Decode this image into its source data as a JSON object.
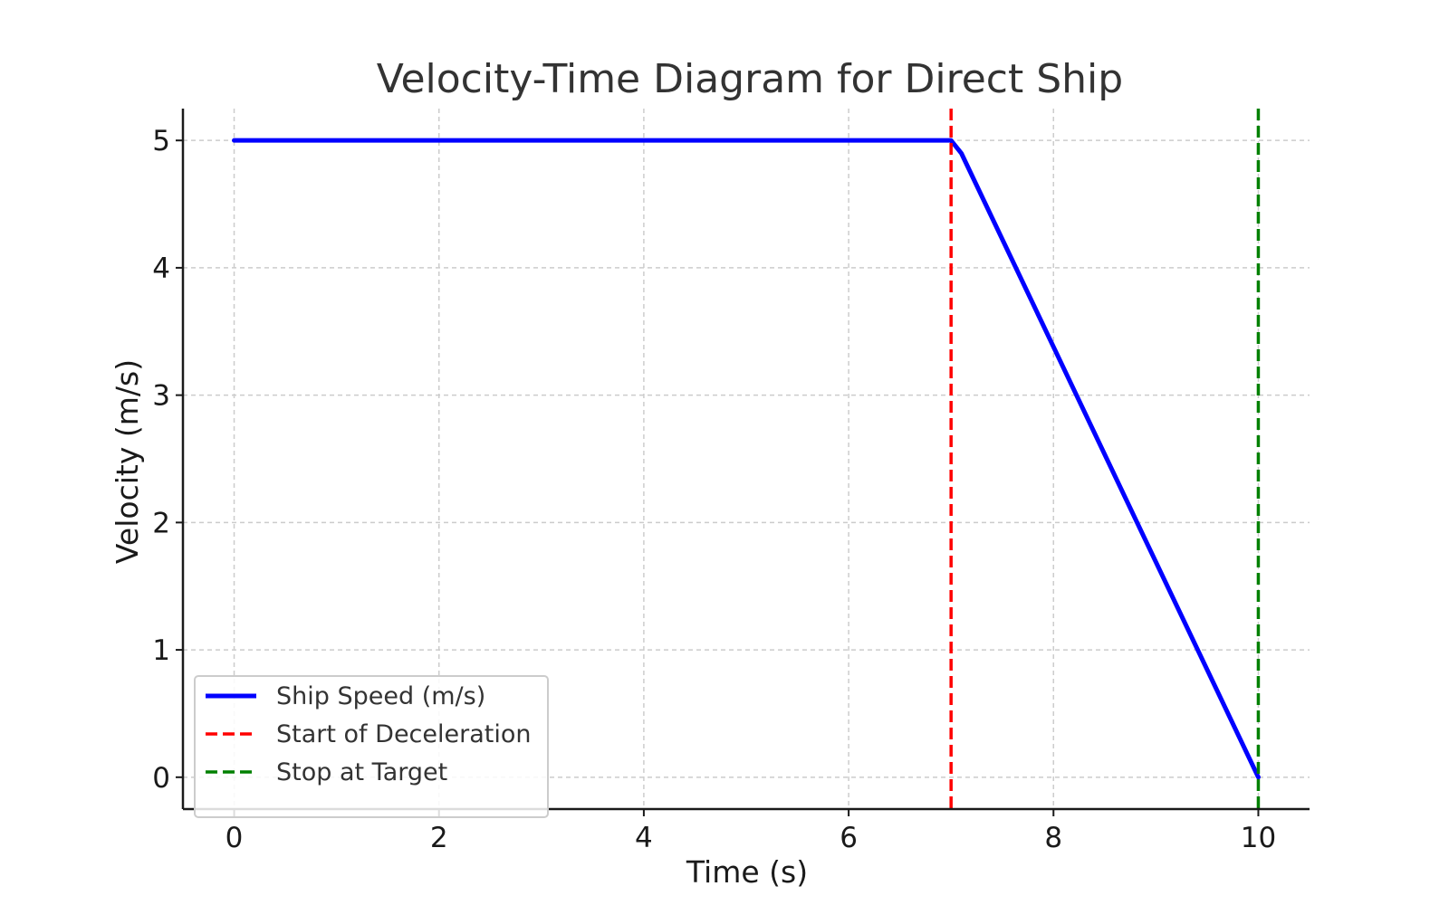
{
  "chart_data": {
    "type": "line",
    "title": "Velocity-Time Diagram for Direct Ship",
    "xlabel": "Time (s)",
    "ylabel": "Velocity (m/s)",
    "xlim": [
      -0.5,
      10.5
    ],
    "ylim": [
      -0.25,
      5.25
    ],
    "xticks": [
      0,
      2,
      4,
      6,
      8,
      10
    ],
    "yticks": [
      0,
      1,
      2,
      3,
      4,
      5
    ],
    "grid": true,
    "legend_position": "lower-left",
    "series": [
      {
        "name": "Ship Speed (m/s)",
        "color": "#0000ff",
        "style": "solid",
        "x": [
          0,
          7.0,
          7.1,
          10
        ],
        "y": [
          5,
          5,
          4.9,
          0
        ]
      }
    ],
    "vlines": [
      {
        "name": "Start of Deceleration",
        "x": 7,
        "color": "#ff0000",
        "style": "dashed"
      },
      {
        "name": "Stop at Target",
        "x": 10,
        "color": "#008000",
        "style": "dashed"
      }
    ]
  }
}
